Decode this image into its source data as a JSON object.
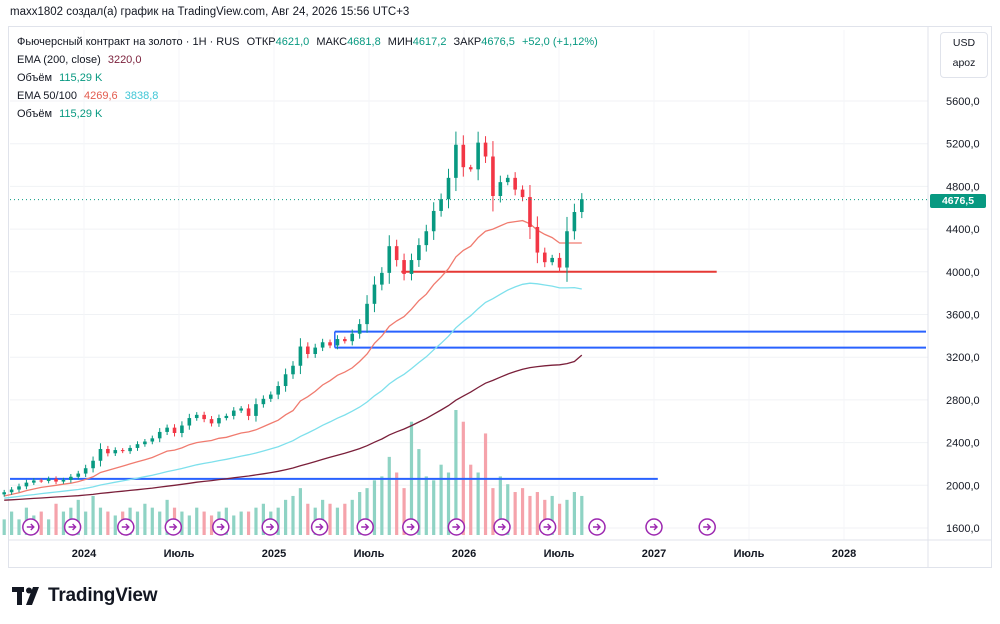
{
  "header": {
    "text": "maxx1802 создал(а) график на TradingView.com, Авг 24, 2026 15:56 UTC+3"
  },
  "legend": {
    "title": "Фьючерсный контракт на золото · 1Н · RUS",
    "open_label": "ОТКР",
    "open": "4621,0",
    "high_label": "МАКС",
    "high": "4681,8",
    "low_label": "МИН",
    "low": "4617,2",
    "close_label": "ЗАКР",
    "close": "4676,5",
    "change": "+52,0 (+1,12%)",
    "ema200_label": "EMA (200, close)",
    "ema200_value": "3220,0",
    "vol_label": "Объём",
    "vol_value": "115,29 K",
    "ema50100_label": "EMA 50/100",
    "ema50_value": "4269,6",
    "ema100_value": "3838,8",
    "vol2_label": "Объём",
    "vol2_value": "115,29 K"
  },
  "currency": {
    "code": "USD",
    "unit": "apoz"
  },
  "price_tag": "4676,5",
  "brand": {
    "name": "TradingView"
  },
  "colors": {
    "up": "#089981",
    "down": "#f23645",
    "ema50": "#f07b6f",
    "ema100": "#7ee0ec",
    "ema200": "#7a1f3a",
    "level_line": "#2962ff",
    "red_line": "#e53935",
    "accent": "#9c27b0"
  },
  "chart_data": {
    "type": "candlestick",
    "y_ticks": [
      "5600,0",
      "5200,0",
      "4800,0",
      "4400,0",
      "4000,0",
      "3600,0",
      "3200,0",
      "2800,0",
      "2400,0",
      "2000,0",
      "1600,0"
    ],
    "x_ticks": [
      "2024",
      "Июль",
      "2025",
      "Июль",
      "2026",
      "Июль",
      "2027",
      "Июль",
      "2028"
    ],
    "ylim": [
      1500,
      5700
    ],
    "last_price": 4676.5,
    "closes": [
      1935,
      1960,
      1990,
      2025,
      2045,
      2040,
      2060,
      2035,
      2050,
      2080,
      2110,
      2160,
      2230,
      2340,
      2300,
      2330,
      2320,
      2350,
      2385,
      2410,
      2440,
      2500,
      2540,
      2490,
      2560,
      2630,
      2660,
      2620,
      2580,
      2630,
      2650,
      2700,
      2720,
      2650,
      2760,
      2810,
      2850,
      2930,
      3040,
      3120,
      3300,
      3230,
      3290,
      3340,
      3310,
      3370,
      3350,
      3420,
      3510,
      3700,
      3880,
      3990,
      4240,
      4110,
      3980,
      4110,
      4250,
      4380,
      4570,
      4680,
      4880,
      5190,
      4980,
      4960,
      5210,
      5080,
      4710,
      4840,
      4880,
      4770,
      4700,
      4420,
      4180,
      4090,
      4130,
      4040,
      4380,
      4560,
      4680
    ],
    "ema50": [
      1900,
      1915,
      1930,
      1950,
      1965,
      1980,
      1990,
      2000,
      2010,
      2020,
      2035,
      2055,
      2080,
      2120,
      2140,
      2160,
      2180,
      2200,
      2220,
      2240,
      2260,
      2290,
      2320,
      2330,
      2350,
      2380,
      2400,
      2410,
      2420,
      2440,
      2450,
      2470,
      2490,
      2500,
      2520,
      2550,
      2580,
      2610,
      2660,
      2700,
      2790,
      2830,
      2880,
      2940,
      2980,
      3030,
      3060,
      3100,
      3160,
      3230,
      3330,
      3400,
      3490,
      3540,
      3580,
      3650,
      3730,
      3790,
      3880,
      3950,
      4030,
      4140,
      4200,
      4240,
      4320,
      4380,
      4400,
      4430,
      4460,
      4470,
      4480,
      4450,
      4390,
      4350,
      4320,
      4270,
      4270,
      4270,
      4269.6
    ],
    "ema100": [
      1880,
      1888,
      1896,
      1905,
      1913,
      1922,
      1930,
      1937,
      1945,
      1953,
      1961,
      1972,
      1985,
      2003,
      2016,
      2029,
      2041,
      2054,
      2067,
      2081,
      2095,
      2111,
      2128,
      2142,
      2157,
      2175,
      2192,
      2205,
      2217,
      2231,
      2244,
      2259,
      2274,
      2287,
      2303,
      2321,
      2341,
      2362,
      2390,
      2418,
      2458,
      2490,
      2525,
      2562,
      2594,
      2629,
      2659,
      2694,
      2733,
      2780,
      2838,
      2887,
      2950,
      2999,
      3040,
      3093,
      3150,
      3204,
      3269,
      3330,
      3397,
      3475,
      3535,
      3589,
      3654,
      3713,
      3748,
      3789,
      3829,
      3859,
      3883,
      3893,
      3888,
      3876,
      3866,
      3849,
      3849,
      3852,
      3838.8
    ],
    "ema200": [
      1860,
      1864,
      1868,
      1873,
      1877,
      1881,
      1886,
      1890,
      1894,
      1899,
      1903,
      1909,
      1915,
      1924,
      1931,
      1938,
      1945,
      1952,
      1959,
      1966,
      1974,
      1983,
      1992,
      2000,
      2009,
      2019,
      2029,
      2037,
      2044,
      2053,
      2061,
      2070,
      2079,
      2087,
      2097,
      2108,
      2119,
      2131,
      2146,
      2162,
      2184,
      2202,
      2222,
      2243,
      2262,
      2282,
      2300,
      2321,
      2344,
      2371,
      2404,
      2434,
      2472,
      2501,
      2527,
      2559,
      2593,
      2627,
      2666,
      2705,
      2747,
      2797,
      2836,
      2873,
      2916,
      2956,
      2983,
      3013,
      3042,
      3066,
      3087,
      3103,
      3112,
      3119,
      3125,
      3129,
      3140,
      3160,
      3220
    ],
    "volumes": [
      0.2,
      0.3,
      0.2,
      0.35,
      0.25,
      0.3,
      0.2,
      0.4,
      0.3,
      0.35,
      0.45,
      0.3,
      0.5,
      0.35,
      0.3,
      0.25,
      0.3,
      0.35,
      0.3,
      0.4,
      0.35,
      0.3,
      0.45,
      0.35,
      0.3,
      0.25,
      0.35,
      0.3,
      0.25,
      0.3,
      0.35,
      0.25,
      0.3,
      0.3,
      0.35,
      0.4,
      0.3,
      0.35,
      0.45,
      0.5,
      0.6,
      0.4,
      0.35,
      0.45,
      0.4,
      0.35,
      0.4,
      0.45,
      0.55,
      0.6,
      0.7,
      0.75,
      1.0,
      0.8,
      0.6,
      1.45,
      1.1,
      0.75,
      0.7,
      0.9,
      0.8,
      1.6,
      1.45,
      0.9,
      0.8,
      1.3,
      0.6,
      0.75,
      0.65,
      0.55,
      0.6,
      0.5,
      0.55,
      0.45,
      0.5,
      0.4,
      0.45,
      0.55,
      0.5
    ],
    "levels": [
      {
        "price": 3440,
        "from": "Июль 2025",
        "to": "2028",
        "color": "blue"
      },
      {
        "price": 3290,
        "from": "Июль 2025",
        "to": "2028",
        "color": "blue"
      },
      {
        "price": 4000,
        "from": "Окт 2025",
        "to": "2027",
        "color": "red"
      },
      {
        "price": 2060,
        "from": "2024",
        "to": "2027",
        "color": "blue"
      }
    ]
  }
}
